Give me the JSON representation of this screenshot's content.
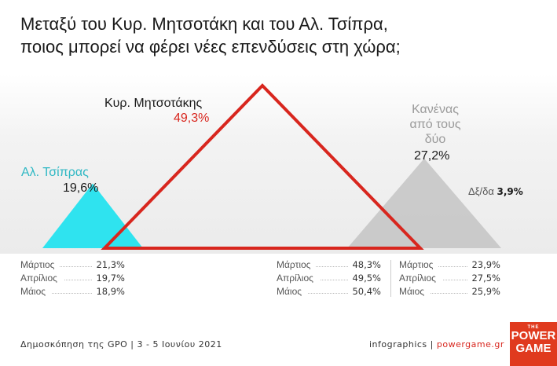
{
  "title_line1": "Μεταξύ του Κυρ. Μητσοτάκη και του Αλ. Τσίπρα,",
  "title_line2": "ποιος μπορεί να φέρει νέες επενδύσεις στη χώρα;",
  "colors": {
    "mitsotakis": "#d8261e",
    "tsipras": "#2fe3ef",
    "none": "#c8c8c8",
    "text": "#1a1a1a"
  },
  "chart_data": {
    "type": "area",
    "series": [
      {
        "name": "Αλ. Τσίπρας",
        "value": 19.6,
        "value_label": "19,6%"
      },
      {
        "name": "Κυρ. Μητσοτάκης",
        "value": 49.3,
        "value_label": "49,3%"
      },
      {
        "name_lines": [
          "Κανένας",
          "από τους",
          "δύο"
        ],
        "value": 27.2,
        "value_label": "27,2%"
      },
      {
        "name": "Δξ/δα",
        "value": 3.9,
        "value_label": "3,9%"
      }
    ],
    "history": {
      "tsipras": [
        {
          "month": "Μάρτιος",
          "value": 21.3,
          "label": "21,3%"
        },
        {
          "month": "Απρίλιος",
          "value": 19.7,
          "label": "19,7%"
        },
        {
          "month": "Μάιος",
          "value": 18.9,
          "label": "18,9%"
        }
      ],
      "mitsotakis": [
        {
          "month": "Μάρτιος",
          "value": 48.3,
          "label": "48,3%"
        },
        {
          "month": "Απρίλιος",
          "value": 49.5,
          "label": "49,5%"
        },
        {
          "month": "Μάιος",
          "value": 50.4,
          "label": "50,4%"
        }
      ],
      "none": [
        {
          "month": "Μάρτιος",
          "value": 23.9,
          "label": "23,9%"
        },
        {
          "month": "Απρίλιος",
          "value": 27.5,
          "label": "27,5%"
        },
        {
          "month": "Μάιος",
          "value": 25.9,
          "label": "25,9%"
        }
      ]
    }
  },
  "footer": {
    "left": "Δημοσκόπηση της GPO | 3 - 5 Ιουνίου 2021",
    "right_prefix": "infographics | ",
    "right_site": "powergame.gr"
  },
  "logo": {
    "top": "THE",
    "line1": "POWER",
    "line2": "GAME"
  }
}
